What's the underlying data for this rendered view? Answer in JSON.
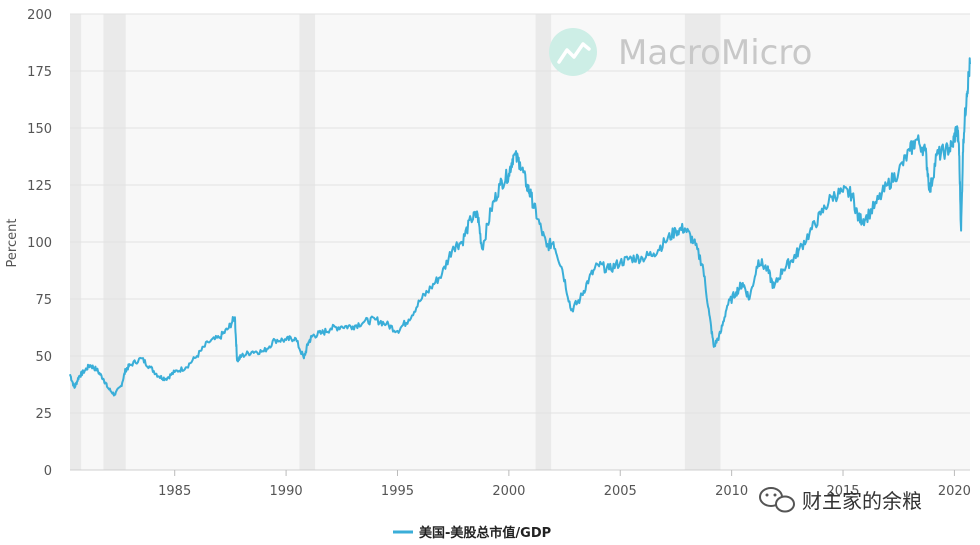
{
  "chart_data": {
    "type": "line",
    "title": "",
    "ylabel": "Percent",
    "xlabel": "",
    "xlim": [
      1980.3,
      2020.7
    ],
    "ylim": [
      0,
      200
    ],
    "yticks": [
      0,
      25,
      50,
      75,
      100,
      125,
      150,
      175,
      200
    ],
    "xticks": [
      1985,
      1990,
      1995,
      2000,
      2005,
      2010,
      2015,
      2020
    ],
    "grid": true,
    "recessions": [
      [
        1980.0,
        1980.8
      ],
      [
        1981.8,
        1982.8
      ],
      [
        1990.6,
        1991.3
      ],
      [
        2001.2,
        2001.9
      ],
      [
        2007.9,
        2009.5
      ]
    ],
    "series": [
      {
        "name": "美国-美股总市值/GDP",
        "color": "#3aaed8",
        "x": [
          1980.3,
          1980.5,
          1980.7,
          1980.9,
          1981.2,
          1981.5,
          1981.8,
          1982.0,
          1982.3,
          1982.6,
          1982.8,
          1983.0,
          1983.5,
          1983.9,
          1984.3,
          1984.6,
          1985.0,
          1985.5,
          1986.0,
          1986.5,
          1987.0,
          1987.4,
          1987.7,
          1987.8,
          1988.0,
          1988.5,
          1989.0,
          1989.5,
          1990.0,
          1990.4,
          1990.8,
          1991.0,
          1991.2,
          1991.6,
          1992.0,
          1992.5,
          1993.0,
          1993.5,
          1994.0,
          1994.5,
          1995.0,
          1995.5,
          1996.0,
          1996.5,
          1997.0,
          1997.5,
          1997.9,
          1998.3,
          1998.6,
          1998.8,
          1999.2,
          1999.6,
          2000.0,
          2000.2,
          2000.5,
          2000.8,
          2001.0,
          2001.3,
          2001.7,
          2002.0,
          2002.4,
          2002.8,
          2003.2,
          2003.6,
          2004.0,
          2004.5,
          2005.0,
          2005.5,
          2006.0,
          2006.5,
          2007.0,
          2007.5,
          2007.9,
          2008.3,
          2008.7,
          2009.0,
          2009.2,
          2009.5,
          2009.8,
          2010.2,
          2010.5,
          2010.8,
          2011.2,
          2011.6,
          2011.9,
          2012.3,
          2012.7,
          2013.0,
          2013.5,
          2014.0,
          2014.5,
          2015.0,
          2015.4,
          2015.7,
          2016.0,
          2016.5,
          2017.0,
          2017.5,
          2018.0,
          2018.3,
          2018.7,
          2018.9,
          2019.2,
          2019.6,
          2019.9,
          2020.1,
          2020.2,
          2020.3,
          2020.4,
          2020.55,
          2020.7
        ],
        "values": [
          42,
          36,
          41,
          43,
          46,
          44,
          40,
          36,
          33,
          37,
          44,
          46,
          49,
          45,
          41,
          40,
          43,
          45,
          50,
          56,
          58,
          62,
          67,
          48,
          50,
          52,
          52,
          57,
          57,
          58,
          49,
          56,
          59,
          60,
          62,
          63,
          63,
          65,
          66,
          64,
          61,
          66,
          74,
          80,
          86,
          98,
          100,
          110,
          112,
          97,
          114,
          125,
          130,
          138,
          135,
          125,
          120,
          110,
          98,
          100,
          88,
          70,
          75,
          84,
          90,
          88,
          91,
          93,
          93,
          95,
          100,
          105,
          106,
          100,
          90,
          68,
          54,
          60,
          72,
          78,
          82,
          75,
          92,
          88,
          80,
          88,
          92,
          96,
          104,
          112,
          120,
          122,
          121,
          110,
          110,
          117,
          125,
          131,
          140,
          145,
          140,
          122,
          138,
          140,
          142,
          150,
          143,
          105,
          145,
          165,
          178
        ]
      }
    ]
  },
  "watermark": {
    "brand": "MacroMicro"
  },
  "credit": {
    "text": "财主家的余粮"
  }
}
